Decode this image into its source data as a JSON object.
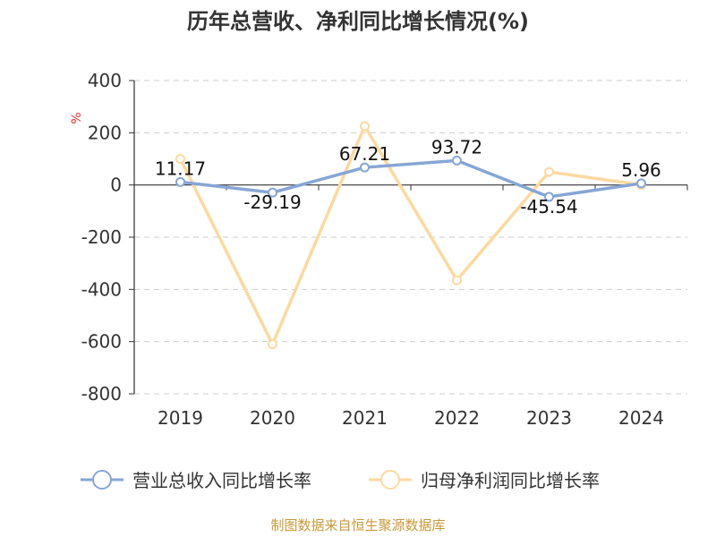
{
  "chart_data": {
    "type": "line",
    "title": "历年总营收、净利同比增长情况(%)",
    "unit_label": "%",
    "categories": [
      "2019",
      "2020",
      "2021",
      "2022",
      "2023",
      "2024"
    ],
    "ylim": [
      -800,
      400
    ],
    "yticks": [
      400,
      200,
      0,
      -200,
      -400,
      -600,
      -800
    ],
    "grid": true,
    "legend_position": "bottom",
    "series": [
      {
        "name": "营业总收入同比增长率",
        "color": "#86a6d6",
        "values": [
          11.17,
          -29.19,
          67.21,
          93.72,
          -45.54,
          5.96
        ],
        "labels": [
          "11.17",
          "-29.19",
          "67.21",
          "93.72",
          "-45.54",
          "5.96"
        ]
      },
      {
        "name": "归母净利润同比增长率",
        "color": "#fbd9a0",
        "values": [
          100,
          -610,
          225,
          -365,
          50,
          0
        ]
      }
    ],
    "source": "制图数据来自恒生聚源数据库"
  }
}
